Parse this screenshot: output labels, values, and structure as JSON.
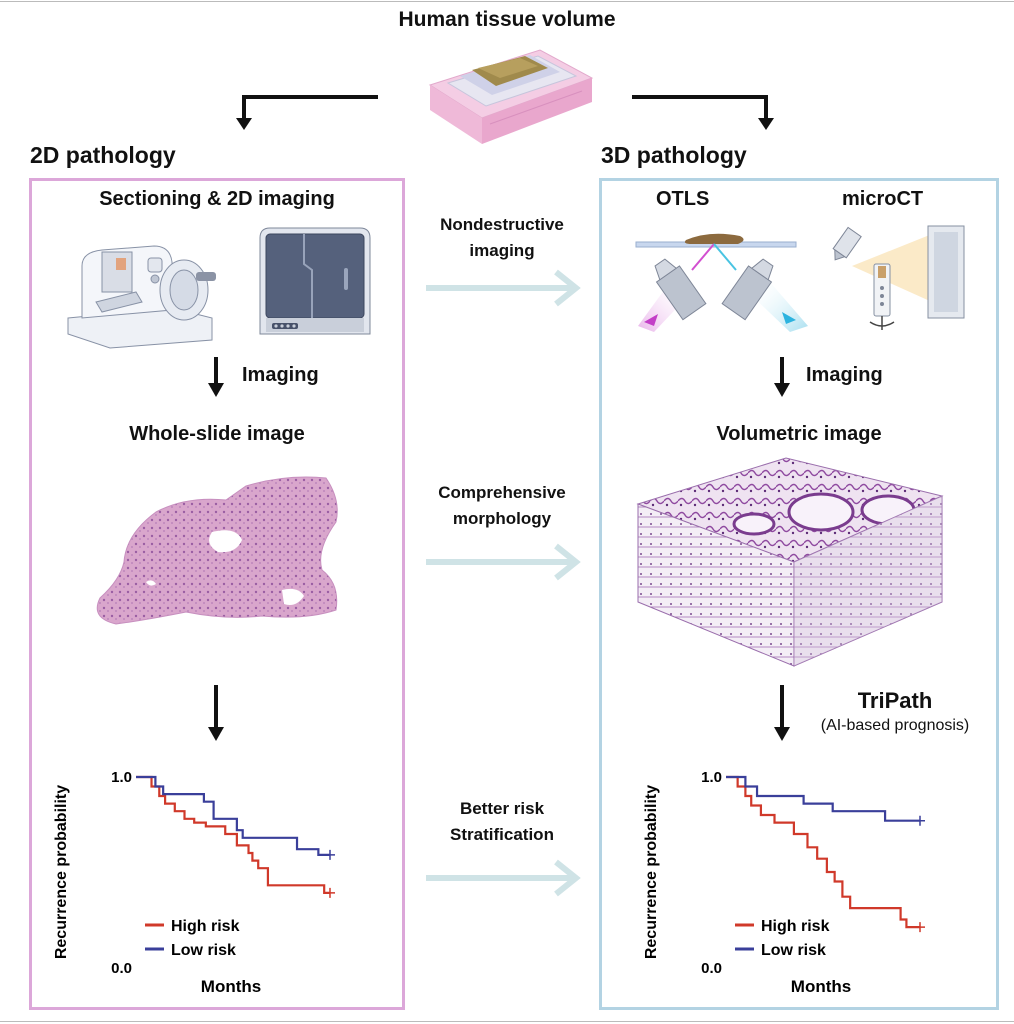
{
  "header": {
    "title": "Human tissue volume"
  },
  "left": {
    "heading": "2D pathology",
    "section_title": "Sectioning & 2D imaging",
    "imaging_label": "Imaging",
    "image_title": "Whole-slide image"
  },
  "right": {
    "heading": "3D pathology",
    "otls_label": "OTLS",
    "microct_label": "microCT",
    "imaging_label": "Imaging",
    "image_title": "Volumetric image",
    "tripath_label": "TriPath",
    "tripath_sub": "(AI-based prognosis)"
  },
  "middle": {
    "arrow1_line1": "Nondestructive",
    "arrow1_line2": "imaging",
    "arrow2_line1": "Comprehensive",
    "arrow2_line2": "morphology",
    "arrow3_line1": "Better risk",
    "arrow3_line2": "Stratification"
  },
  "colors": {
    "panel_2d_border": "#dca7d9",
    "panel_3d_border": "#b3d3e3",
    "high_risk": "#d0392a",
    "low_risk": "#3a3f9a",
    "mid_arrow": "#cfe3e6"
  },
  "chart_data": [
    {
      "type": "line",
      "title": "",
      "xlabel": "Months",
      "ylabel": "Recurrence probability",
      "ylim": [
        0.0,
        1.0
      ],
      "yticks": [
        "1.0",
        "0.0"
      ],
      "legend_placement": "bottom-left",
      "series": [
        {
          "name": "High risk",
          "x": [
            0,
            0.08,
            0.12,
            0.15,
            0.2,
            0.25,
            0.3,
            0.36,
            0.46,
            0.52,
            0.58,
            0.6,
            0.63,
            0.68,
            0.97,
            1.0
          ],
          "y": [
            1.0,
            0.95,
            0.9,
            0.86,
            0.82,
            0.78,
            0.76,
            0.74,
            0.7,
            0.64,
            0.6,
            0.56,
            0.52,
            0.43,
            0.39,
            0.39
          ]
        },
        {
          "name": "Low risk",
          "x": [
            0,
            0.1,
            0.14,
            0.35,
            0.4,
            0.52,
            0.55,
            0.83,
            0.94,
            1.0
          ],
          "y": [
            1.0,
            0.95,
            0.91,
            0.87,
            0.78,
            0.72,
            0.68,
            0.62,
            0.59,
            0.59
          ]
        }
      ]
    },
    {
      "type": "line",
      "title": "",
      "xlabel": "Months",
      "ylabel": "Recurrence probability",
      "ylim": [
        0.0,
        1.0
      ],
      "yticks": [
        "1.0",
        "0.0"
      ],
      "legend_placement": "bottom-left",
      "series": [
        {
          "name": "High risk",
          "x": [
            0,
            0.06,
            0.1,
            0.13,
            0.18,
            0.25,
            0.35,
            0.42,
            0.47,
            0.52,
            0.56,
            0.6,
            0.64,
            0.7,
            0.9,
            0.93,
            1.0
          ],
          "y": [
            1.0,
            0.95,
            0.9,
            0.85,
            0.8,
            0.76,
            0.7,
            0.63,
            0.57,
            0.5,
            0.45,
            0.37,
            0.31,
            0.31,
            0.25,
            0.21,
            0.21
          ]
        },
        {
          "name": "Low risk",
          "x": [
            0,
            0.1,
            0.16,
            0.4,
            0.55,
            0.82,
            1.0
          ],
          "y": [
            1.0,
            0.95,
            0.9,
            0.86,
            0.82,
            0.77,
            0.77
          ]
        }
      ]
    }
  ]
}
